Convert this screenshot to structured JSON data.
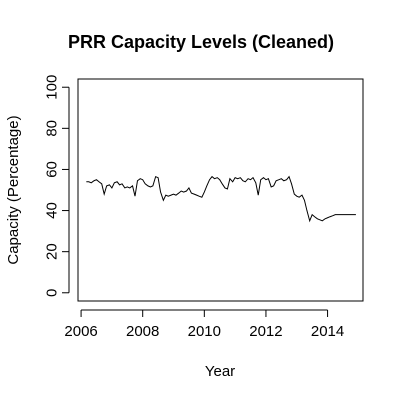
{
  "chart_data": {
    "type": "line",
    "title": "PRR Capacity Levels (Cleaned)",
    "xlabel": "Year",
    "ylabel": "Capacity (Percentage)",
    "xlim": [
      2005.9,
      2015.15
    ],
    "ylim": [
      -4,
      104
    ],
    "x_ticks": [
      2006,
      2008,
      2010,
      2012,
      2014
    ],
    "y_ticks": [
      0,
      20,
      40,
      60,
      80,
      100
    ],
    "x_tick_labels": [
      "2006",
      "2008",
      "2010",
      "2012",
      "2014"
    ],
    "y_tick_labels": [
      "0",
      "20",
      "40",
      "60",
      "80",
      "100"
    ],
    "grid": false,
    "series": [
      {
        "x": [
          2006.17,
          2006.25,
          2006.33,
          2006.42,
          2006.5,
          2006.58,
          2006.67,
          2006.75,
          2006.83,
          2006.92,
          2007.0,
          2007.08,
          2007.17,
          2007.25,
          2007.33,
          2007.42,
          2007.5,
          2007.58,
          2007.67,
          2007.75,
          2007.83,
          2007.92,
          2008.0,
          2008.08,
          2008.17,
          2008.25,
          2008.33,
          2008.42,
          2008.5,
          2008.58,
          2008.67,
          2008.75,
          2008.83,
          2008.92,
          2009.0,
          2009.08,
          2009.17,
          2009.25,
          2009.33,
          2009.42,
          2009.5,
          2009.58,
          2009.67,
          2009.75,
          2009.83,
          2009.92,
          2010.0,
          2010.08,
          2010.17,
          2010.25,
          2010.33,
          2010.42,
          2010.5,
          2010.58,
          2010.67,
          2010.75,
          2010.83,
          2010.92,
          2011.0,
          2011.08,
          2011.17,
          2011.25,
          2011.33,
          2011.42,
          2011.5,
          2011.58,
          2011.67,
          2011.75,
          2011.83,
          2011.92,
          2012.0,
          2012.08,
          2012.17,
          2012.25,
          2012.33,
          2012.42,
          2012.5,
          2012.58,
          2012.67,
          2012.75,
          2012.83,
          2012.92,
          2013.0,
          2013.08,
          2013.17,
          2013.25,
          2013.33,
          2013.42,
          2013.5,
          2013.58,
          2013.67,
          2013.75,
          2013.83,
          2013.92,
          2014.0,
          2014.08,
          2014.17,
          2014.25,
          2014.33,
          2014.42,
          2014.5,
          2014.58,
          2014.67,
          2014.75,
          2014.83,
          2014.92
        ],
        "y": [
          54,
          54,
          53.5,
          54.5,
          55,
          54,
          53,
          48,
          52,
          52.5,
          51,
          53.5,
          54,
          52.5,
          53,
          51,
          51.5,
          51,
          52,
          47,
          54.5,
          55.5,
          55,
          53,
          52,
          51.5,
          52,
          56.5,
          56,
          49,
          45,
          47.5,
          47,
          47.5,
          48,
          47.5,
          48.5,
          49.5,
          49,
          49.5,
          51,
          48.5,
          48,
          47.5,
          47,
          46.5,
          49,
          52,
          55,
          56.5,
          55.5,
          56,
          55,
          53,
          51,
          50.5,
          55.5,
          54,
          56,
          55.5,
          56,
          54.5,
          54,
          55.5,
          55,
          56,
          53.5,
          47.5,
          55,
          56,
          55,
          55.5,
          51.5,
          52,
          54.5,
          55,
          55.5,
          54.5,
          55,
          56.5,
          53,
          48,
          47,
          46.5,
          47.5,
          45,
          40,
          35,
          38,
          37,
          36,
          35.5,
          35,
          36,
          36.5,
          37,
          37.5,
          38,
          38,
          38,
          38,
          38,
          38,
          38,
          38,
          38
        ]
      }
    ]
  }
}
